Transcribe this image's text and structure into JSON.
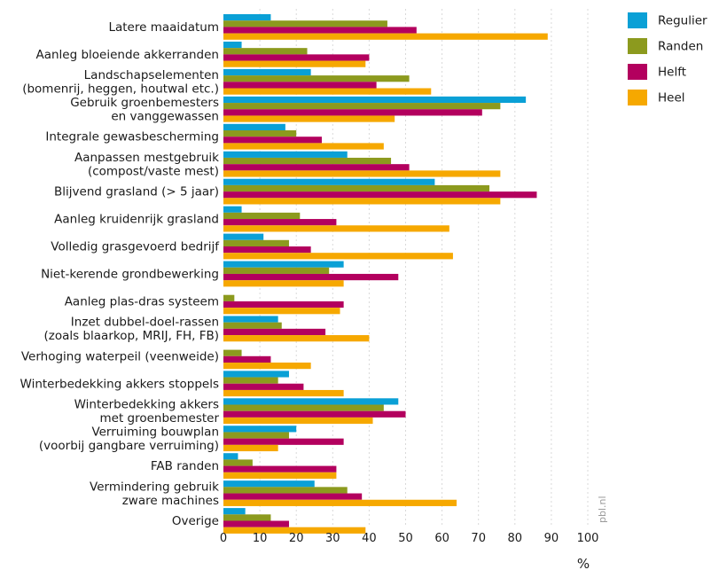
{
  "source": "pbl.nl",
  "chart_data": {
    "type": "bar",
    "orientation": "horizontal",
    "xlabel": "%",
    "xlim": [
      0,
      100
    ],
    "xticks": [
      0,
      10,
      20,
      30,
      40,
      50,
      60,
      70,
      80,
      90,
      100
    ],
    "grid": true,
    "legend_position": "top-right",
    "categories": [
      [
        "Latere maaidatum"
      ],
      [
        "Aanleg bloeiende akkerranden"
      ],
      [
        "Landschapselementen",
        "(bomenrij, heggen, houtwal etc.)"
      ],
      [
        "Gebruik groenbemesters",
        "en vanggewassen"
      ],
      [
        "Integrale gewasbescherming"
      ],
      [
        "Aanpassen mestgebruik",
        "(compost/vaste mest)"
      ],
      [
        "Blijvend grasland (> 5 jaar)"
      ],
      [
        "Aanleg kruidenrijk grasland"
      ],
      [
        "Volledig grasgevoerd bedrijf"
      ],
      [
        "Niet-kerende grondbewerking"
      ],
      [
        "Aanleg plas-dras systeem"
      ],
      [
        "Inzet dubbel-doel-rassen",
        "(zoals blaarkop, MRIJ, FH, FB)"
      ],
      [
        "Verhoging waterpeil (veenweide)"
      ],
      [
        "Winterbedekking akkers stoppels"
      ],
      [
        "Winterbedekking akkers",
        "met groenbemester"
      ],
      [
        "Verruiming bouwplan",
        "(voorbij gangbare verruiming)"
      ],
      [
        "FAB randen"
      ],
      [
        "Vermindering gebruik",
        "zware machines"
      ],
      [
        "Overige"
      ]
    ],
    "series": [
      {
        "name": "Regulier",
        "color": "#0aa0d6",
        "values": [
          13,
          5,
          24,
          83,
          17,
          34,
          58,
          5,
          11,
          33,
          0,
          15,
          0,
          18,
          48,
          20,
          4,
          25,
          6
        ]
      },
      {
        "name": "Randen",
        "color": "#8c9a1e",
        "values": [
          45,
          23,
          51,
          76,
          20,
          46,
          73,
          21,
          18,
          29,
          3,
          16,
          5,
          15,
          44,
          18,
          8,
          34,
          13
        ]
      },
      {
        "name": "Helft",
        "color": "#b3005e",
        "values": [
          53,
          40,
          42,
          71,
          27,
          51,
          86,
          31,
          24,
          48,
          33,
          28,
          13,
          22,
          50,
          33,
          31,
          38,
          18
        ]
      },
      {
        "name": "Heel",
        "color": "#f6a800",
        "values": [
          89,
          39,
          57,
          47,
          44,
          76,
          76,
          62,
          63,
          33,
          32,
          40,
          24,
          33,
          41,
          15,
          31,
          64,
          39
        ]
      }
    ]
  }
}
